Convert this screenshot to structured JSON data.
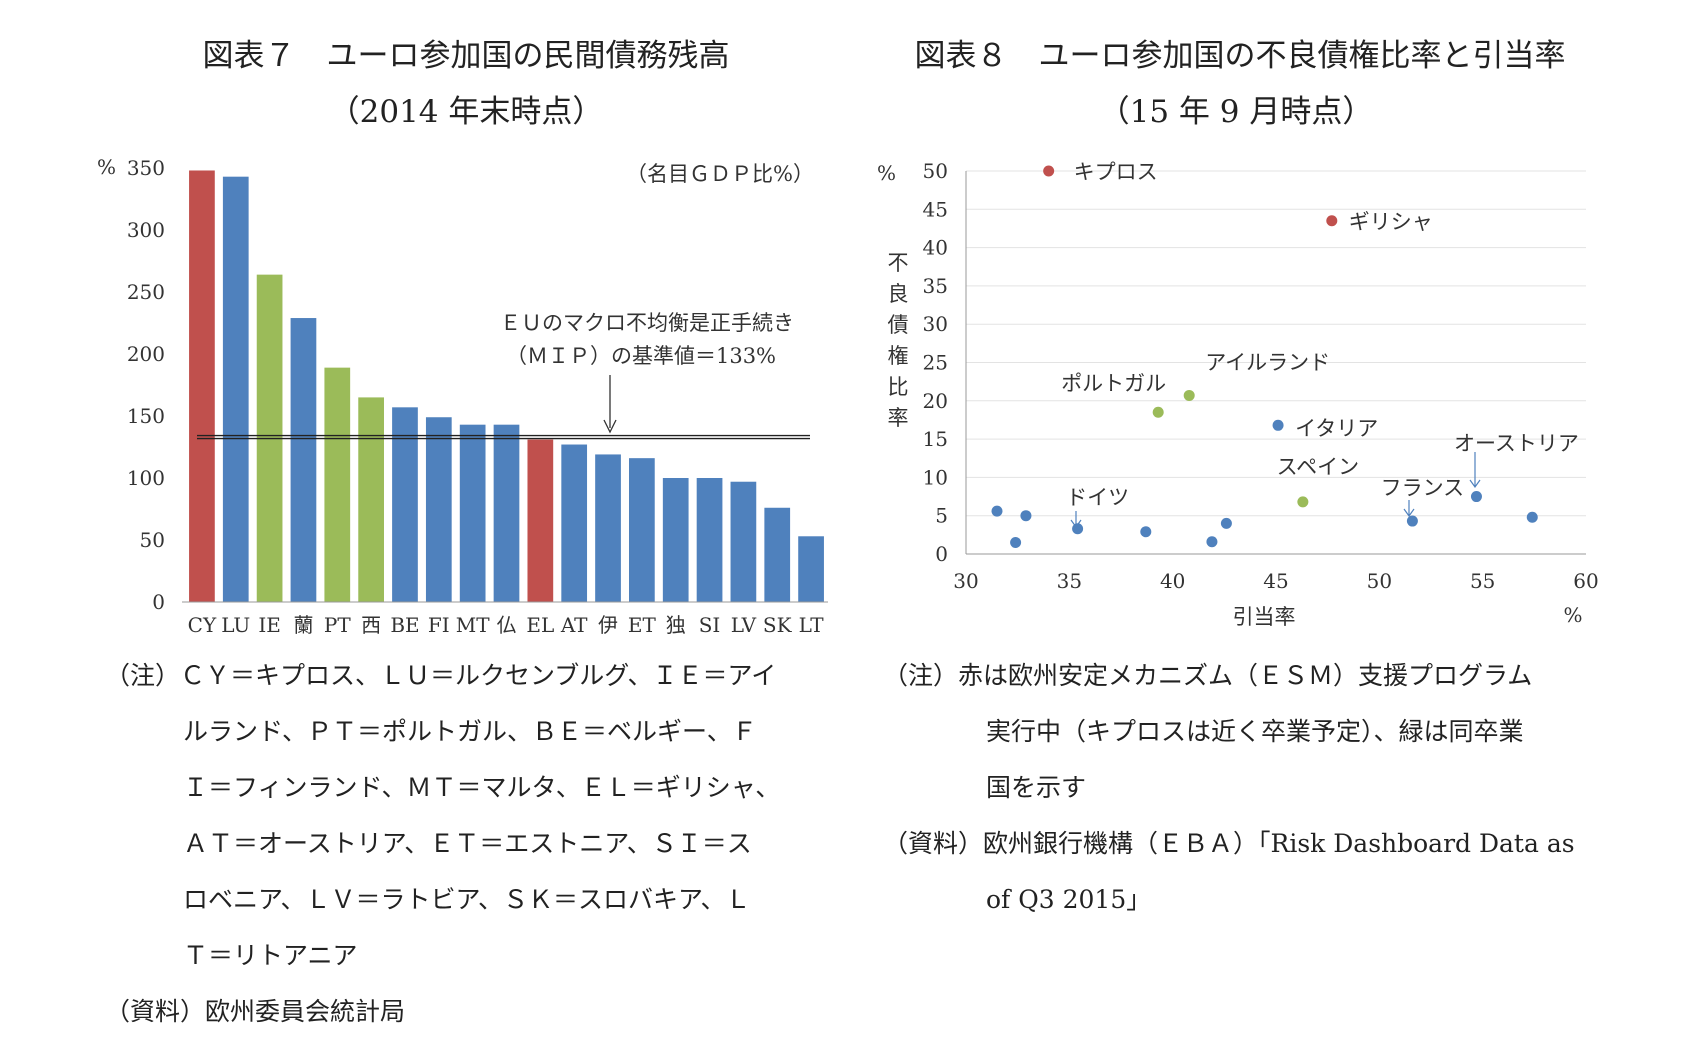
{
  "left": {
    "title_line1": "図表７　ユーロ参加国の民間債務残高",
    "title_line2": "（2014 年末時点）",
    "unit_note": "（名目ＧＤＰ比%）",
    "y_unit": "%",
    "mip_line1": "ＥＵのマクロ不均衡是正手続き",
    "mip_line2": "（ＭＩＰ）の基準値＝133%",
    "note_lines": [
      "（注）ＣＹ＝キプロス、ＬＵ＝ルクセンブルグ、ＩＥ＝アイ",
      "ルランド、ＰＴ＝ポルトガル、ＢＥ＝ベルギー、Ｆ",
      "Ｉ＝フィンランド、ＭＴ＝マルタ、ＥＬ＝ギリシャ、",
      "ＡＴ＝オーストリア、ＥＴ＝エストニア、ＳＩ＝ス",
      "ロベニア、ＬＶ＝ラトビア、ＳＫ＝スロバキア、Ｌ",
      "Ｔ＝リトアニア"
    ],
    "source": "（資料）欧州委員会統計局"
  },
  "right": {
    "title_line1": "図表８　ユーロ参加国の不良債権比率と引当率",
    "title_line2": "（15 年 9 月時点）",
    "y_unit": "%",
    "y_label_chars": [
      "不",
      "良",
      "債",
      "権",
      "比",
      "率"
    ],
    "x_label": "引当率",
    "x_unit": "%",
    "note_lines": [
      "（注）赤は欧州安定メカニズム（ＥＳＭ）支援プログラム",
      "実行中（キプロスは近く卒業予定）、緑は同卒業",
      "国を示す"
    ],
    "source_lines": [
      "（資料）欧州銀行機構（ＥＢＡ）「Risk Dashboard Data as",
      "of Q3 2015」"
    ]
  },
  "colors": {
    "red": "#c0504d",
    "blue": "#4f81bd",
    "green": "#9bbb59"
  },
  "chart_data": [
    {
      "type": "bar",
      "ylim": [
        0,
        350
      ],
      "yticks": [
        0,
        50,
        100,
        150,
        200,
        250,
        300,
        350
      ],
      "reference_line": 133,
      "categories": [
        "CY",
        "LU",
        "IE",
        "蘭",
        "PT",
        "西",
        "BE",
        "FI",
        "MT",
        "仏",
        "EL",
        "AT",
        "伊",
        "ET",
        "独",
        "SI",
        "LV",
        "SK",
        "LT"
      ],
      "values": [
        348,
        343,
        264,
        229,
        189,
        165,
        157,
        149,
        143,
        143,
        131,
        127,
        119,
        116,
        100,
        100,
        97,
        76,
        53
      ],
      "groups": [
        "red",
        "blue",
        "green",
        "blue",
        "green",
        "green",
        "blue",
        "blue",
        "blue",
        "blue",
        "red",
        "blue",
        "blue",
        "blue",
        "blue",
        "blue",
        "blue",
        "blue",
        "blue"
      ]
    },
    {
      "type": "scatter",
      "xlim": [
        30,
        60
      ],
      "ylim": [
        0,
        50
      ],
      "xticks": [
        30,
        35,
        40,
        45,
        50,
        55,
        60
      ],
      "yticks": [
        0,
        5,
        10,
        15,
        20,
        25,
        30,
        35,
        40,
        45,
        50
      ],
      "grid": true,
      "points": [
        {
          "x": 34.0,
          "y": 50.0,
          "group": "red",
          "label": "キプロス"
        },
        {
          "x": 47.7,
          "y": 43.5,
          "group": "red",
          "label": "ギリシャ"
        },
        {
          "x": 39.3,
          "y": 18.5,
          "group": "green",
          "label": "ポルトガル"
        },
        {
          "x": 40.8,
          "y": 20.7,
          "group": "green",
          "label": "アイルランド"
        },
        {
          "x": 45.1,
          "y": 16.8,
          "group": "blue",
          "label": "イタリア"
        },
        {
          "x": 46.3,
          "y": 6.8,
          "group": "green",
          "label": "スペイン"
        },
        {
          "x": 35.4,
          "y": 3.3,
          "group": "blue",
          "label": "ドイツ"
        },
        {
          "x": 51.6,
          "y": 4.3,
          "group": "blue",
          "label": "フランス"
        },
        {
          "x": 54.7,
          "y": 7.5,
          "group": "blue",
          "label": "オーストリア"
        },
        {
          "x": 31.5,
          "y": 5.6,
          "group": "blue",
          "label": ""
        },
        {
          "x": 32.4,
          "y": 1.5,
          "group": "blue",
          "label": ""
        },
        {
          "x": 32.9,
          "y": 5.0,
          "group": "blue",
          "label": ""
        },
        {
          "x": 38.7,
          "y": 2.9,
          "group": "blue",
          "label": ""
        },
        {
          "x": 41.9,
          "y": 1.6,
          "group": "blue",
          "label": ""
        },
        {
          "x": 42.6,
          "y": 4.0,
          "group": "blue",
          "label": ""
        },
        {
          "x": 57.4,
          "y": 4.8,
          "group": "blue",
          "label": ""
        }
      ]
    }
  ]
}
